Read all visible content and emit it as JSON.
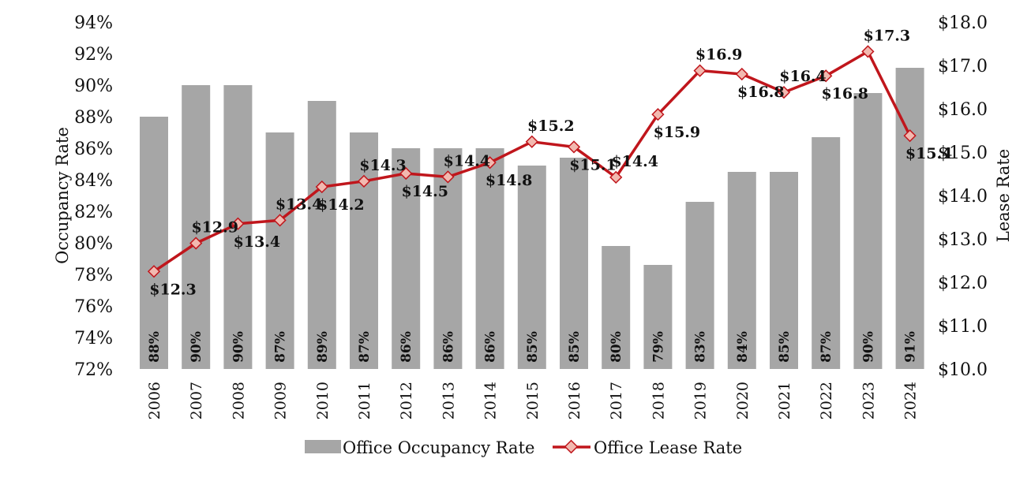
{
  "chart_data": {
    "type": "bar+line",
    "categories": [
      "2006",
      "2007",
      "2008",
      "2009",
      "2010",
      "2011",
      "2012",
      "2013",
      "2014",
      "2015",
      "2016",
      "2017",
      "2018",
      "2019",
      "2020",
      "2021",
      "2022",
      "2023",
      "2024"
    ],
    "series": [
      {
        "name": "Office Occupancy Rate",
        "type": "bar",
        "axis": "left",
        "color": "#a6a6a6",
        "values": [
          88,
          90,
          90,
          87,
          89,
          87,
          86,
          86,
          86,
          84.9,
          85.4,
          79.8,
          78.6,
          82.6,
          84.5,
          84.5,
          86.7,
          89.5,
          91.1
        ],
        "labels": [
          "88%",
          "90%",
          "90%",
          "87%",
          "89%",
          "87%",
          "86%",
          "86%",
          "86%",
          "85%",
          "85%",
          "80%",
          "79%",
          "83%",
          "84%",
          "85%",
          "87%",
          "90%",
          "91%"
        ]
      },
      {
        "name": "Office Lease Rate",
        "type": "line",
        "axis": "right",
        "color": "#c0161c",
        "values": [
          12.25,
          12.9,
          13.35,
          13.43,
          14.2,
          14.33,
          14.51,
          14.43,
          14.76,
          15.24,
          15.12,
          14.42,
          15.87,
          16.88,
          16.8,
          16.38,
          16.76,
          17.32,
          15.38
        ],
        "labels": [
          "$12.3",
          "$12.9",
          "$13.4",
          "$13.4",
          "$14.2",
          "$14.3",
          "$14.5",
          "$14.4",
          "$14.8",
          "$15.2",
          "$15.1",
          "$14.4",
          "$15.9",
          "$16.9",
          "$16.8",
          "$16.4",
          "$16.8",
          "$17.3",
          "$15.4"
        ],
        "label_positions": [
          "below",
          "above",
          "below",
          "above",
          "below",
          "above",
          "below",
          "above",
          "below",
          "above",
          "below",
          "above",
          "below",
          "above",
          "below",
          "above",
          "below",
          "above",
          "below"
        ]
      }
    ],
    "yaxis_left": {
      "label": "Occupancy Rate",
      "min": 72,
      "max": 94,
      "step": 2,
      "tick_labels": [
        "72%",
        "74%",
        "76%",
        "78%",
        "80%",
        "82%",
        "84%",
        "86%",
        "88%",
        "90%",
        "92%",
        "94%"
      ]
    },
    "yaxis_right": {
      "label": "Lease Rate",
      "min": 10,
      "max": 18,
      "step": 1,
      "tick_labels": [
        "$10.0",
        "$11.0",
        "$12.0",
        "$13.0",
        "$14.0",
        "$15.0",
        "$16.0",
        "$17.0",
        "$18.0"
      ]
    },
    "grid": false,
    "legend": {
      "position": "bottom",
      "items": [
        {
          "label": "Office Occupancy Rate",
          "kind": "bar"
        },
        {
          "label": "Office Lease Rate",
          "kind": "line"
        }
      ]
    }
  }
}
